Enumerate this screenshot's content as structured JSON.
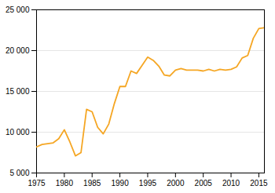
{
  "chart_data": {
    "type": "line",
    "x": [
      1975,
      1976,
      1977,
      1978,
      1979,
      1980,
      1981,
      1982,
      1983,
      1984,
      1985,
      1986,
      1987,
      1988,
      1989,
      1990,
      1991,
      1992,
      1993,
      1994,
      1995,
      1996,
      1997,
      1998,
      1999,
      2000,
      2001,
      2002,
      2003,
      2004,
      2005,
      2006,
      2007,
      2008,
      2009,
      2010,
      2011,
      2012,
      2013,
      2014,
      2015,
      2016
    ],
    "values": [
      8200,
      8500,
      8600,
      8700,
      9200,
      10300,
      8800,
      7100,
      7500,
      12800,
      12500,
      10600,
      9800,
      11000,
      13500,
      15600,
      15600,
      17500,
      17200,
      18200,
      19200,
      18800,
      18100,
      17000,
      16900,
      17600,
      17800,
      17600,
      17600,
      17600,
      17500,
      17700,
      17500,
      17700,
      17600,
      17700,
      18000,
      19100,
      19400,
      21500,
      22700,
      22800
    ],
    "color": "#F5A623",
    "xlim": [
      1975,
      2016
    ],
    "ylim": [
      5000,
      25000
    ],
    "xticks": [
      1975,
      1980,
      1985,
      1990,
      1995,
      2000,
      2005,
      2010,
      2015
    ],
    "yticks": [
      {
        "value": 5000,
        "label": "5 000"
      },
      {
        "value": 10000,
        "label": "10 000"
      },
      {
        "value": 15000,
        "label": "15 000"
      },
      {
        "value": 20000,
        "label": "20 000"
      },
      {
        "value": 25000,
        "label": "25 000"
      }
    ],
    "grid": true
  }
}
